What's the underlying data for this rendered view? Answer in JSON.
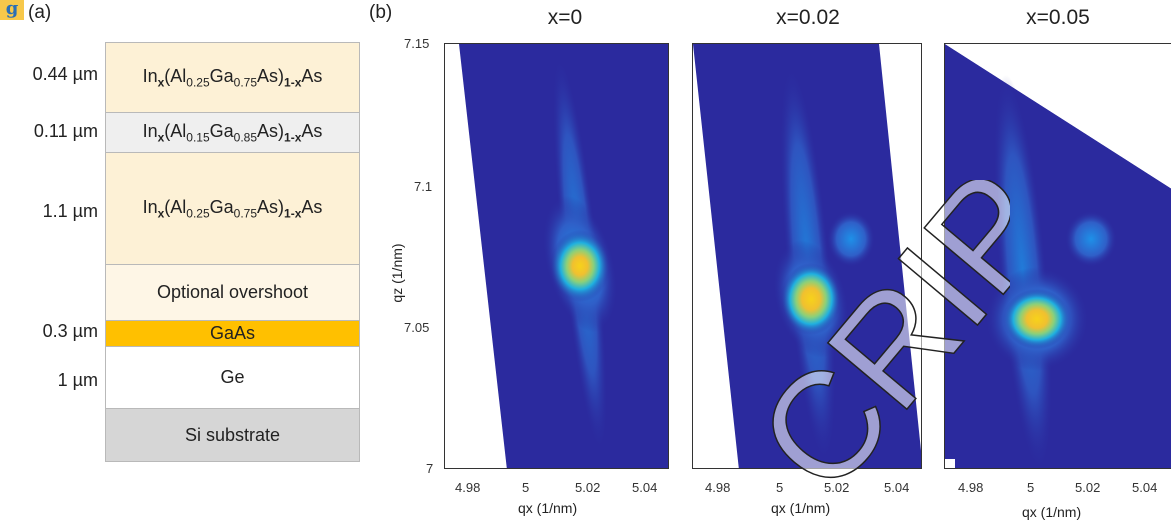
{
  "logo_letter": "g",
  "panel_a": {
    "label": "(a)",
    "thicknesses": [
      "0.44 µm",
      "0.11 µm",
      "1.1 µm",
      "0.3 µm",
      "1 µm"
    ],
    "layers": [
      {
        "kind": "formula",
        "al": "0.25",
        "ga": "0.75",
        "color": "#fdf1d6"
      },
      {
        "kind": "formula",
        "al": "0.15",
        "ga": "0.85",
        "color": "#efefef"
      },
      {
        "kind": "formula",
        "al": "0.25",
        "ga": "0.75",
        "color": "#fdf1d6"
      },
      {
        "kind": "text",
        "text": "Optional overshoot",
        "color": "#fef6e6"
      },
      {
        "kind": "text",
        "text": "GaAs",
        "color": "#ffc000"
      },
      {
        "kind": "text",
        "text": "Ge",
        "color": "#ffffff"
      },
      {
        "kind": "text",
        "text": "Si substrate",
        "color": "#d6d6d6"
      }
    ],
    "formula_parts": {
      "in": "In",
      "x": "x",
      "al": "(Al",
      "ga": "Ga",
      "as": "As)",
      "one_minus_x": "1-x",
      "as2": "As"
    }
  },
  "panel_b": {
    "label": "(b)",
    "titles": [
      "x=0",
      "x=0.02",
      "x=0.05"
    ],
    "ylabel": "qz (1/nm)",
    "xlabel": "qx (1/nm)",
    "yticks": [
      "7.15",
      "7.1",
      "7.05",
      "7"
    ],
    "xticks": [
      "4.98",
      "5",
      "5.02",
      "5.04"
    ]
  },
  "watermark": "CRIPT",
  "colors": {
    "map_bg": "#2b2a9e",
    "peak_core": "#f2c51c"
  }
}
